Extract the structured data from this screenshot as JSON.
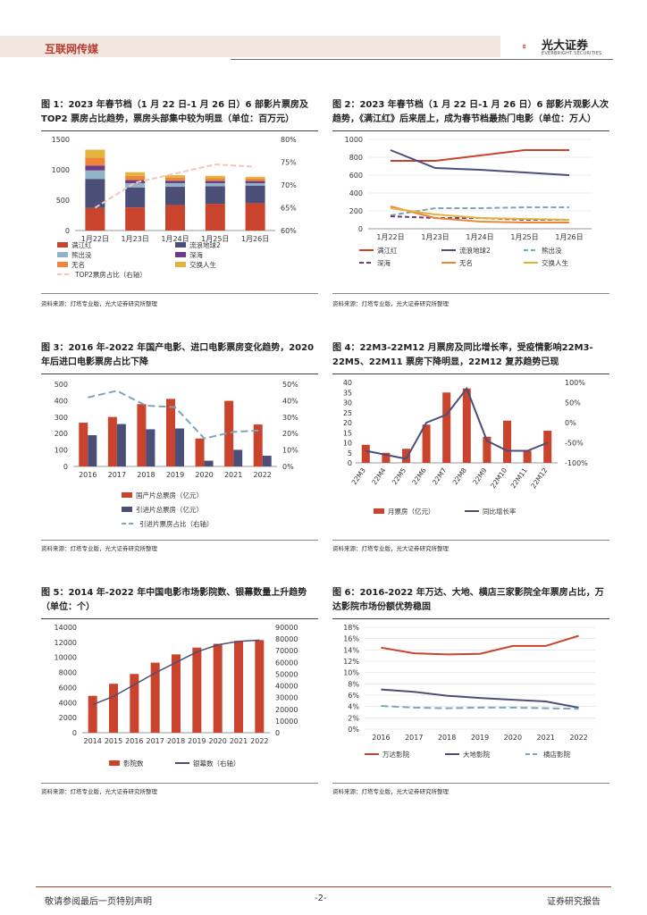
{
  "header": {
    "section": "互联网传媒",
    "brand": "光大证券",
    "brand_en": "EVERBRIGHT SECURITIES"
  },
  "footer": {
    "left": "敬请参阅最后一页特别声明",
    "center": "-2-",
    "right": "证券研究报告"
  },
  "colors": {
    "red": "#c9432d",
    "navy": "#4b4f78",
    "lightblue": "#8fb4c4",
    "purple": "#6c3a86",
    "orange": "#f0853a",
    "gold": "#e2b43d",
    "pink": "#f4c5b8",
    "dashblue": "#7ea6b8",
    "grid": "#dddddd"
  },
  "panels": [
    {
      "title": "图 1：2023 年春节档（1 月 22 日-1 月 26 日）6 部影片票房及TOP2 票房占比趋势，票房头部集中较为明显（单位：百万元）",
      "source": "资料来源：灯塔专业版，光大证券研究所整理"
    },
    {
      "title": "图 2：2023 年春节档（1 月 22 日-1 月 26 日）6 部影片观影人次趋势，《满江红》后来居上，成为春节档最热门电影（单位：万人）",
      "source": "资料来源：灯塔专业版，光大证券研究所整理"
    },
    {
      "title": "图 3：2016 年-2022 年国产电影、进口电影票房变化趋势，2020年后进口电影票房占比下降",
      "source": "资料来源：灯塔专业版，光大证券研究所整理"
    },
    {
      "title": "图 4：22M3-22M12 月票房及同比增长率，受疫情影响22M3-22M5、22M11 票房下降明显，22M12 复苏趋势已现",
      "source": "资料来源：灯塔专业版，光大证券研究所整理"
    },
    {
      "title": "图 5：2014 年-2022 年中国电影市场影院数、银幕数量上升趋势（单位：个）",
      "source": "资料来源：灯塔专业版，光大证券研究所整理"
    },
    {
      "title": "图 6：2016-2022 年万达、大地、横店三家影院全年票房占比，万达影院市场份额优势稳固",
      "source": "资料来源：灯塔专业版，光大证券研究所整理"
    }
  ],
  "chart_data": [
    {
      "type": "bar",
      "stacked": true,
      "categories": [
        "1月22日",
        "1月23日",
        "1月24日",
        "1月25日",
        "1月26日"
      ],
      "series": [
        {
          "name": "满江红",
          "values": [
            370,
            380,
            420,
            440,
            450
          ]
        },
        {
          "name": "流浪地球2",
          "values": [
            480,
            330,
            300,
            290,
            290
          ]
        },
        {
          "name": "熊出没",
          "values": [
            140,
            70,
            60,
            50,
            40
          ]
        },
        {
          "name": "深海",
          "values": [
            80,
            50,
            40,
            35,
            35
          ]
        },
        {
          "name": "无名",
          "values": [
            130,
            70,
            50,
            45,
            40
          ]
        },
        {
          "name": "交换人生",
          "values": [
            130,
            60,
            40,
            40,
            30
          ]
        }
      ],
      "line": {
        "name": "TOP2票房占比（右轴）",
        "values": [
          65,
          70.5,
          72.5,
          74.5,
          74
        ]
      },
      "ylim": [
        0,
        1500
      ],
      "yticks": [
        0,
        500,
        1000,
        1500
      ],
      "y2lim": [
        60,
        80
      ],
      "y2ticks": [
        "60%",
        "65%",
        "70%",
        "75%",
        "80%"
      ]
    },
    {
      "type": "line",
      "categories": [
        "1月22日",
        "1月23日",
        "1月24日",
        "1月25日",
        "1月26日"
      ],
      "series": [
        {
          "name": "满江红",
          "values": [
            760,
            760,
            820,
            880,
            880
          ]
        },
        {
          "name": "流浪地球2",
          "values": [
            880,
            680,
            660,
            630,
            600
          ]
        },
        {
          "name": "熊出没",
          "values": [
            150,
            230,
            230,
            240,
            240
          ]
        },
        {
          "name": "深海",
          "values": [
            140,
            120,
            120,
            100,
            100
          ]
        },
        {
          "name": "无名",
          "values": [
            250,
            120,
            80,
            70,
            70
          ]
        },
        {
          "name": "交换人生",
          "values": [
            230,
            160,
            120,
            110,
            100
          ]
        }
      ],
      "ylim": [
        0,
        1000
      ],
      "yticks": [
        0,
        200,
        400,
        600,
        800,
        1000
      ]
    },
    {
      "type": "bar",
      "categories": [
        "2016",
        "2017",
        "2018",
        "2019",
        "2020",
        "2021",
        "2022"
      ],
      "series": [
        {
          "name": "国产片总票房（亿元）",
          "values": [
            266,
            301,
            379,
            411,
            170,
            399,
            255
          ]
        },
        {
          "name": "引进片总票房（亿元）",
          "values": [
            190,
            258,
            226,
            231,
            35,
            101,
            65
          ]
        }
      ],
      "line": {
        "name": "引进片票房占比（右轴）",
        "values": [
          42,
          46,
          37,
          36,
          17,
          21,
          22
        ]
      },
      "ylim": [
        0,
        500
      ],
      "yticks": [
        0,
        100,
        200,
        300,
        400,
        500
      ],
      "y2lim": [
        0,
        50
      ],
      "y2ticks": [
        "0%",
        "10%",
        "20%",
        "30%",
        "40%",
        "50%"
      ]
    },
    {
      "type": "bar",
      "categories": [
        "22M3",
        "22M4",
        "22M5",
        "22M6",
        "22M7",
        "22M8",
        "22M9",
        "22M10",
        "22M11",
        "22M12"
      ],
      "series": [
        {
          "name": "月票房（亿元）",
          "values": [
            9,
            5,
            7,
            19,
            35,
            37,
            13,
            21,
            6,
            16
          ]
        }
      ],
      "line": {
        "name": "同比增长率",
        "values": [
          -70,
          -80,
          -90,
          0,
          20,
          85,
          -45,
          -70,
          -70,
          -50
        ]
      },
      "ylim": [
        0,
        40
      ],
      "yticks": [
        0,
        5,
        10,
        15,
        20,
        25,
        30,
        35,
        40
      ],
      "y2lim": [
        -100,
        100
      ],
      "y2ticks": [
        "-100%",
        "-50%",
        "0%",
        "50%",
        "100%"
      ]
    },
    {
      "type": "bar",
      "categories": [
        "2014",
        "2015",
        "2016",
        "2017",
        "2018",
        "2019",
        "2020",
        "2021",
        "2022"
      ],
      "series": [
        {
          "name": "影院数",
          "values": [
            4900,
            6500,
            7800,
            9300,
            10400,
            11300,
            11800,
            12200,
            12300
          ]
        }
      ],
      "line": {
        "name": "银幕数（右轴）",
        "values": [
          24000,
          31000,
          41000,
          51000,
          60000,
          69000,
          75000,
          78000,
          79000
        ]
      },
      "ylim": [
        0,
        14000
      ],
      "yticks": [
        0,
        2000,
        4000,
        6000,
        8000,
        10000,
        12000,
        14000
      ],
      "y2lim": [
        0,
        90000
      ],
      "y2ticks": [
        "0",
        "10000",
        "20000",
        "30000",
        "40000",
        "50000",
        "60000",
        "70000",
        "80000",
        "90000"
      ]
    },
    {
      "type": "line",
      "categories": [
        "2016",
        "2017",
        "2018",
        "2019",
        "2020",
        "2021",
        "2022"
      ],
      "series": [
        {
          "name": "万达影院",
          "values": [
            14.4,
            13.4,
            13.2,
            13.3,
            14.7,
            14.7,
            16.5
          ]
        },
        {
          "name": "大地影院",
          "values": [
            7.0,
            6.6,
            5.9,
            5.5,
            5.2,
            4.9,
            3.8
          ]
        },
        {
          "name": "横店影院",
          "values": [
            4.1,
            3.8,
            3.7,
            3.8,
            3.8,
            3.7,
            3.6
          ]
        }
      ],
      "ylim": [
        0,
        18
      ],
      "yticks": [
        "0%",
        "2%",
        "4%",
        "6%",
        "8%",
        "10%",
        "12%",
        "14%",
        "16%",
        "18%"
      ]
    }
  ]
}
